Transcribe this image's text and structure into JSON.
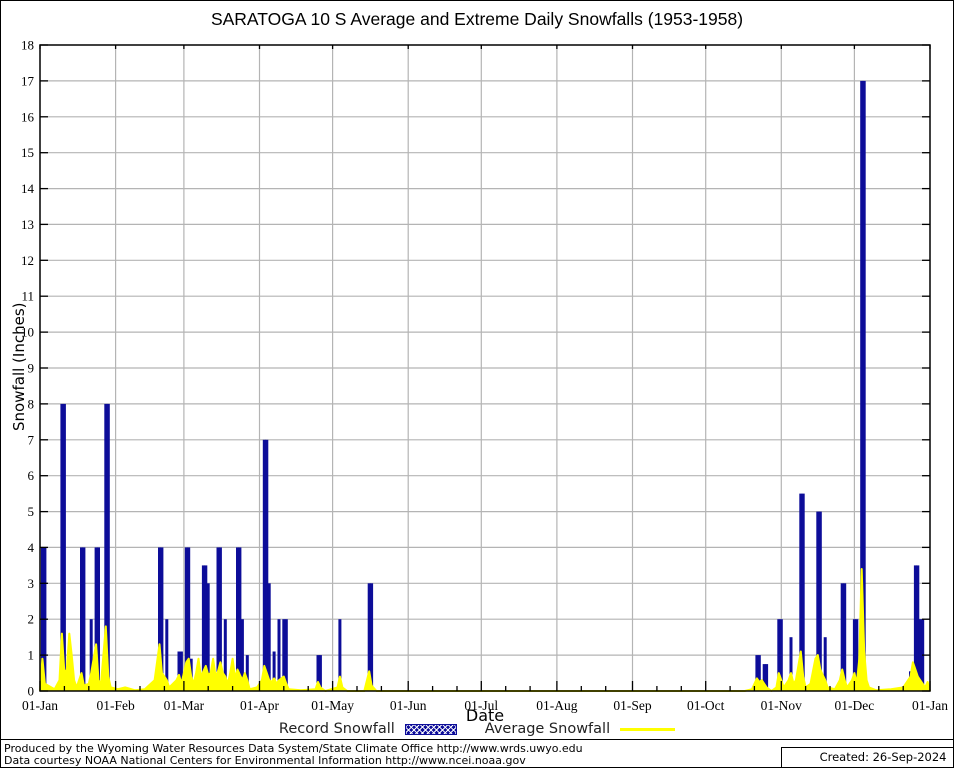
{
  "title": "SARATOGA 10 S Average and Extreme Daily Snowfalls (1953-1958)",
  "y_axis": {
    "label": "Snowfall (Inches)",
    "min": 0,
    "max": 18,
    "tick_step": 1
  },
  "x_axis": {
    "label": "Date",
    "tick_labels": [
      "01-Jan",
      "01-Feb",
      "01-Mar",
      "01-Apr",
      "01-May",
      "01-Jun",
      "01-Jul",
      "01-Aug",
      "01-Sep",
      "01-Oct",
      "01-Nov",
      "01-Dec",
      "01-Jan"
    ],
    "tick_days": [
      1,
      32,
      60,
      91,
      121,
      152,
      182,
      213,
      244,
      274,
      305,
      335,
      366
    ]
  },
  "legend": [
    {
      "label": "Record Snowfall",
      "type": "bar",
      "color": "#0d0d99"
    },
    {
      "label": "Average Snowfall",
      "type": "line",
      "color": "#ffff00"
    }
  ],
  "footer": {
    "line1": "Produced by the Wyoming Water Resources Data System/State Climate Office http://www.wrds.uwyo.edu",
    "line2": "Data courtesy NOAA National Centers for Environmental Information http://www.ncei.noaa.gov",
    "created": "Created: 26-Sep-2024"
  },
  "colors": {
    "record_bar": "#0d0d99",
    "average_line": "#ffff00",
    "grid": "#b4b4b4",
    "axis": "#000000"
  },
  "chart_data": {
    "type": "bar",
    "title": "SARATOGA 10 S Average and Extreme Daily Snowfalls (1953-1958)",
    "xlabel": "Date",
    "ylabel": "Snowfall (Inches)",
    "ylim": [
      0,
      18
    ],
    "x_unit": "day-of-year",
    "x_tick_labels": [
      "01-Jan",
      "01-Feb",
      "01-Mar",
      "01-Apr",
      "01-May",
      "01-Jun",
      "01-Jul",
      "01-Aug",
      "01-Sep",
      "01-Oct",
      "01-Nov",
      "01-Dec",
      "01-Jan"
    ],
    "x_tick_days": [
      1,
      32,
      60,
      91,
      121,
      152,
      182,
      213,
      244,
      274,
      305,
      335,
      366
    ],
    "grid": true,
    "legend_position": "bottom-center",
    "series": [
      {
        "name": "Record Snowfall",
        "type": "bar",
        "color": "#0d0d99",
        "points": [
          [
            2,
            4
          ],
          [
            3,
            4
          ],
          [
            10,
            8
          ],
          [
            11,
            8
          ],
          [
            18,
            4
          ],
          [
            19,
            4
          ],
          [
            22,
            2
          ],
          [
            24,
            4
          ],
          [
            25,
            4
          ],
          [
            28,
            8
          ],
          [
            29,
            8
          ],
          [
            50,
            4
          ],
          [
            51,
            4
          ],
          [
            53,
            2
          ],
          [
            58,
            1.1
          ],
          [
            59,
            1.1
          ],
          [
            61,
            4
          ],
          [
            62,
            4
          ],
          [
            63,
            0.9
          ],
          [
            66,
            0.8
          ],
          [
            68,
            3.5
          ],
          [
            69,
            3.5
          ],
          [
            70,
            3
          ],
          [
            72,
            0.5
          ],
          [
            74,
            4
          ],
          [
            75,
            4
          ],
          [
            77,
            2
          ],
          [
            80,
            0.6
          ],
          [
            82,
            4
          ],
          [
            83,
            4
          ],
          [
            84,
            2
          ],
          [
            86,
            1
          ],
          [
            93,
            7
          ],
          [
            94,
            7
          ],
          [
            95,
            3
          ],
          [
            97,
            1.1
          ],
          [
            99,
            2
          ],
          [
            101,
            2
          ],
          [
            102,
            2
          ],
          [
            115,
            1
          ],
          [
            116,
            1
          ],
          [
            124,
            2
          ],
          [
            136,
            3
          ],
          [
            137,
            3
          ],
          [
            295,
            1
          ],
          [
            296,
            1
          ],
          [
            298,
            0.75
          ],
          [
            299,
            0.75
          ],
          [
            304,
            2
          ],
          [
            305,
            2
          ],
          [
            309,
            1.5
          ],
          [
            313,
            5.5
          ],
          [
            314,
            5.5
          ],
          [
            320,
            5
          ],
          [
            321,
            5
          ],
          [
            323,
            1.5
          ],
          [
            330,
            3
          ],
          [
            331,
            3
          ],
          [
            335,
            2
          ],
          [
            336,
            2
          ],
          [
            338,
            17
          ],
          [
            339,
            17
          ],
          [
            358,
            0.55
          ],
          [
            360,
            3.5
          ],
          [
            361,
            3.5
          ],
          [
            362,
            2
          ],
          [
            363,
            2
          ]
        ]
      },
      {
        "name": "Average Snowfall",
        "type": "line",
        "color": "#ffff00",
        "points": [
          [
            1,
            0
          ],
          [
            2,
            0.9
          ],
          [
            3,
            0.2
          ],
          [
            7,
            0.05
          ],
          [
            9,
            0.3
          ],
          [
            10,
            1.6
          ],
          [
            11,
            0.5
          ],
          [
            12,
            0.6
          ],
          [
            13,
            1.6
          ],
          [
            14,
            1.0
          ],
          [
            15,
            0.3
          ],
          [
            16,
            0.1
          ],
          [
            18,
            0.5
          ],
          [
            19,
            0.15
          ],
          [
            21,
            0.2
          ],
          [
            22,
            0.5
          ],
          [
            24,
            1.3
          ],
          [
            25,
            0.3
          ],
          [
            26,
            0.2
          ],
          [
            28,
            1.8
          ],
          [
            29,
            0.4
          ],
          [
            30,
            0.1
          ],
          [
            33,
            0.05
          ],
          [
            36,
            0.1
          ],
          [
            40,
            0.02
          ],
          [
            44,
            0.05
          ],
          [
            48,
            0.3
          ],
          [
            50,
            1.3
          ],
          [
            51,
            0.5
          ],
          [
            52,
            0.4
          ],
          [
            53,
            0.3
          ],
          [
            54,
            0.1
          ],
          [
            57,
            0.3
          ],
          [
            58,
            0.45
          ],
          [
            59,
            0.2
          ],
          [
            61,
            0.8
          ],
          [
            62,
            0.9
          ],
          [
            63,
            0.4
          ],
          [
            64,
            0.2
          ],
          [
            65,
            0.5
          ],
          [
            66,
            0.9
          ],
          [
            67,
            0.4
          ],
          [
            68,
            0.55
          ],
          [
            69,
            0.7
          ],
          [
            70,
            0.45
          ],
          [
            71,
            0.5
          ],
          [
            72,
            0.9
          ],
          [
            73,
            0.4
          ],
          [
            74,
            0.55
          ],
          [
            75,
            0.8
          ],
          [
            76,
            0.5
          ],
          [
            77,
            0.4
          ],
          [
            78,
            0.2
          ],
          [
            79,
            0.5
          ],
          [
            80,
            0.9
          ],
          [
            81,
            0.35
          ],
          [
            82,
            0.6
          ],
          [
            83,
            0.45
          ],
          [
            84,
            0.3
          ],
          [
            85,
            0.5
          ],
          [
            86,
            0.3
          ],
          [
            87,
            0.05
          ],
          [
            90,
            0.1
          ],
          [
            92,
            0.3
          ],
          [
            93,
            0.7
          ],
          [
            94,
            0.5
          ],
          [
            95,
            0.3
          ],
          [
            96,
            0.25
          ],
          [
            97,
            0.35
          ],
          [
            98,
            0.2
          ],
          [
            99,
            0.3
          ],
          [
            100,
            0.35
          ],
          [
            101,
            0.4
          ],
          [
            102,
            0.2
          ],
          [
            103,
            0.05
          ],
          [
            108,
            0.02
          ],
          [
            114,
            0.05
          ],
          [
            115,
            0.25
          ],
          [
            116,
            0.1
          ],
          [
            118,
            0
          ],
          [
            123,
            0.1
          ],
          [
            124,
            0.4
          ],
          [
            125,
            0.1
          ],
          [
            127,
            0
          ],
          [
            134,
            0
          ],
          [
            136,
            0.55
          ],
          [
            137,
            0.15
          ],
          [
            139,
            0
          ],
          [
            160,
            0
          ],
          [
            200,
            0
          ],
          [
            250,
            0
          ],
          [
            290,
            0
          ],
          [
            293,
            0.05
          ],
          [
            295,
            0.35
          ],
          [
            296,
            0.25
          ],
          [
            297,
            0.3
          ],
          [
            298,
            0.2
          ],
          [
            299,
            0.1
          ],
          [
            301,
            0
          ],
          [
            303,
            0.1
          ],
          [
            304,
            0.5
          ],
          [
            305,
            0.3
          ],
          [
            306,
            0.1
          ],
          [
            308,
            0.3
          ],
          [
            309,
            0.5
          ],
          [
            310,
            0.2
          ],
          [
            311,
            0.3
          ],
          [
            313,
            1.1
          ],
          [
            314,
            0.4
          ],
          [
            315,
            0.1
          ],
          [
            317,
            0.2
          ],
          [
            319,
            0.9
          ],
          [
            320,
            1.0
          ],
          [
            321,
            0.6
          ],
          [
            322,
            0.45
          ],
          [
            323,
            0.3
          ],
          [
            324,
            0.1
          ],
          [
            327,
            0.05
          ],
          [
            329,
            0.3
          ],
          [
            330,
            0.6
          ],
          [
            331,
            0.3
          ],
          [
            332,
            0.1
          ],
          [
            334,
            0.3
          ],
          [
            335,
            0.5
          ],
          [
            336,
            0.2
          ],
          [
            337,
            0.9
          ],
          [
            338,
            3.4
          ],
          [
            339,
            1.1
          ],
          [
            340,
            0.3
          ],
          [
            341,
            0.1
          ],
          [
            344,
            0.02
          ],
          [
            350,
            0.05
          ],
          [
            355,
            0.1
          ],
          [
            357,
            0.3
          ],
          [
            358,
            0.4
          ],
          [
            359,
            0.8
          ],
          [
            360,
            0.6
          ],
          [
            361,
            0.4
          ],
          [
            362,
            0.3
          ],
          [
            363,
            0.2
          ],
          [
            364,
            0.1
          ],
          [
            365,
            0.25
          ],
          [
            366,
            0
          ]
        ]
      }
    ]
  }
}
